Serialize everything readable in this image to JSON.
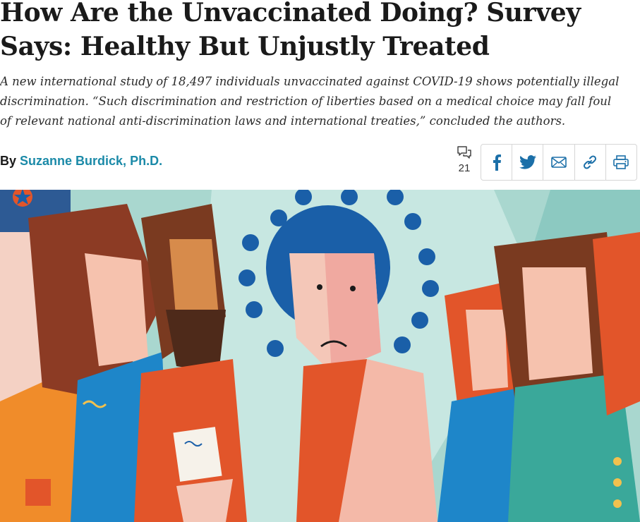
{
  "article": {
    "headline": "How Are the Unvaccinated Doing? Survey Says: Healthy But Unjustly Treated",
    "dek": "A new international study of 18,497 individuals unvaccinated against COVID-19 shows potentially illegal discrimination. “Such discrimination and restriction of liberties based on a medical choice may fall foul of relevant national anti-discrimination laws and international treaties,” concluded the authors.",
    "byline_prefix": "By",
    "author": "Suzanne Burdick, Ph.D."
  },
  "comments": {
    "icon": "comment-bubbles-icon",
    "count": "21"
  },
  "share": {
    "buttons": [
      "facebook-icon",
      "twitter-icon",
      "email-icon",
      "link-icon",
      "print-icon"
    ],
    "color": "#1b6fa8"
  },
  "hero": {
    "description_icon": "illustration",
    "colors": {
      "background": "#a9d7cf",
      "virus": "#1a5fa8",
      "orange": "#e2552a",
      "skin": "#f4c7b8"
    }
  },
  "colors": {
    "author_link": "#1b8aa8",
    "text": "#1a1a1a"
  }
}
